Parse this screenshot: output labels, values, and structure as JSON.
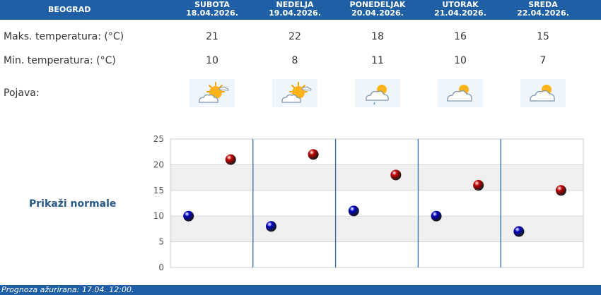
{
  "header": {
    "city": "BEOGRAD",
    "days": [
      {
        "name": "SUBOTA",
        "date": "18.04.2026."
      },
      {
        "name": "NEDELJA",
        "date": "19.04.2026."
      },
      {
        "name": "PONEDELJAK",
        "date": "20.04.2026."
      },
      {
        "name": "UTORAK",
        "date": "21.04.2026."
      },
      {
        "name": "SREDA",
        "date": "22.04.2026."
      }
    ]
  },
  "rows": {
    "max_label": "Maks. temperatura: (°C)",
    "min_label": "Min. temperatura: (°C)",
    "phenomenon_label": "Pojava:",
    "max_values": [
      "21",
      "22",
      "18",
      "16",
      "15"
    ],
    "min_values": [
      "10",
      "8",
      "11",
      "10",
      "7"
    ],
    "icons": [
      "sun-cloud-icon",
      "sun-cloud-icon",
      "cloud-sun-light-rain-icon",
      "cloud-sun-icon",
      "cloud-sun-icon"
    ]
  },
  "normals_link": "Prikaži normale",
  "chart_data": {
    "type": "scatter",
    "categories": [
      "SUBOTA",
      "NEDELJA",
      "PONEDELJAK",
      "UTORAK",
      "SREDA"
    ],
    "series": [
      {
        "values": [
          21,
          22,
          18,
          16,
          15
        ],
        "color": "#c00000"
      },
      {
        "values": [
          10,
          8,
          11,
          10,
          7
        ],
        "color": "#0000c0"
      }
    ],
    "ylim": [
      0,
      25
    ],
    "yticks": [
      "0",
      "5",
      "10",
      "15",
      "20",
      "25"
    ],
    "grid": true,
    "band_color": "#efefef"
  },
  "footer": {
    "text": "Prognoza ažurirana:  17.04.  12:00."
  },
  "colors": {
    "header_bg": "#1f5fa6",
    "max_marker": "#c00000",
    "min_marker": "#0000c0",
    "divider": "#2f6fb0"
  }
}
